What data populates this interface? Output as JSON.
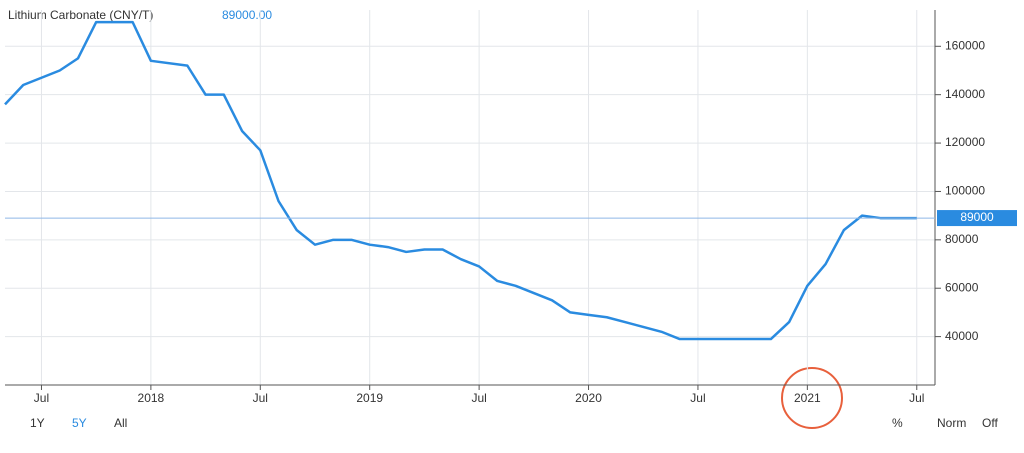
{
  "chart_data": {
    "type": "line",
    "title": "Lithium Carbonate (CNY/T)",
    "last": {
      "value": 89000,
      "label": "89000.00",
      "axis_label": "89000"
    },
    "x": [
      "2017-05",
      "2017-06",
      "2017-08",
      "2017-09",
      "2017-10",
      "2017-12",
      "2018-01",
      "2018-03",
      "2018-04",
      "2018-05",
      "2018-06",
      "2018-07",
      "2018-08",
      "2018-09",
      "2018-10",
      "2018-11",
      "2018-12",
      "2019-01",
      "2019-02",
      "2019-03",
      "2019-04",
      "2019-05",
      "2019-06",
      "2019-07",
      "2019-08",
      "2019-09",
      "2019-10",
      "2019-11",
      "2019-12",
      "2020-01",
      "2020-02",
      "2020-03",
      "2020-04",
      "2020-05",
      "2020-06",
      "2020-07",
      "2020-08",
      "2020-09",
      "2020-10",
      "2020-11",
      "2020-12",
      "2021-01",
      "2021-02",
      "2021-03",
      "2021-04",
      "2021-05",
      "2021-06",
      "2021-07"
    ],
    "series": [
      {
        "name": "Lithium Carbonate (CNY/T)",
        "color": "#2a8be0",
        "values": [
          136000,
          144000,
          150000,
          155000,
          170000,
          170000,
          154000,
          152000,
          140000,
          140000,
          125000,
          117000,
          96000,
          84000,
          78000,
          80000,
          80000,
          78000,
          77000,
          75000,
          76000,
          76000,
          72000,
          69000,
          63000,
          61000,
          58000,
          55000,
          50000,
          49000,
          48000,
          46000,
          44000,
          42000,
          39000,
          39000,
          39000,
          39000,
          39000,
          39000,
          46000,
          61000,
          70000,
          84000,
          90000,
          89000,
          89000,
          89000
        ]
      }
    ],
    "xlim": [
      "2017-05",
      "2021-08"
    ],
    "xticks": [
      {
        "value": "2017-07",
        "label": "Jul"
      },
      {
        "value": "2018-01",
        "label": "2018"
      },
      {
        "value": "2018-07",
        "label": "Jul"
      },
      {
        "value": "2019-01",
        "label": "2019"
      },
      {
        "value": "2019-07",
        "label": "Jul"
      },
      {
        "value": "2020-01",
        "label": "2020"
      },
      {
        "value": "2020-07",
        "label": "Jul"
      },
      {
        "value": "2021-01",
        "label": "2021"
      },
      {
        "value": "2021-07",
        "label": "Jul"
      }
    ],
    "ylim": [
      20000,
      175000
    ],
    "yticks": [
      40000,
      60000,
      80000,
      100000,
      120000,
      140000,
      160000
    ],
    "grid": true,
    "ranges": [
      "1Y",
      "5Y",
      "All"
    ],
    "active_range": 1,
    "options": [
      "%",
      "Norm",
      "Off"
    ]
  }
}
